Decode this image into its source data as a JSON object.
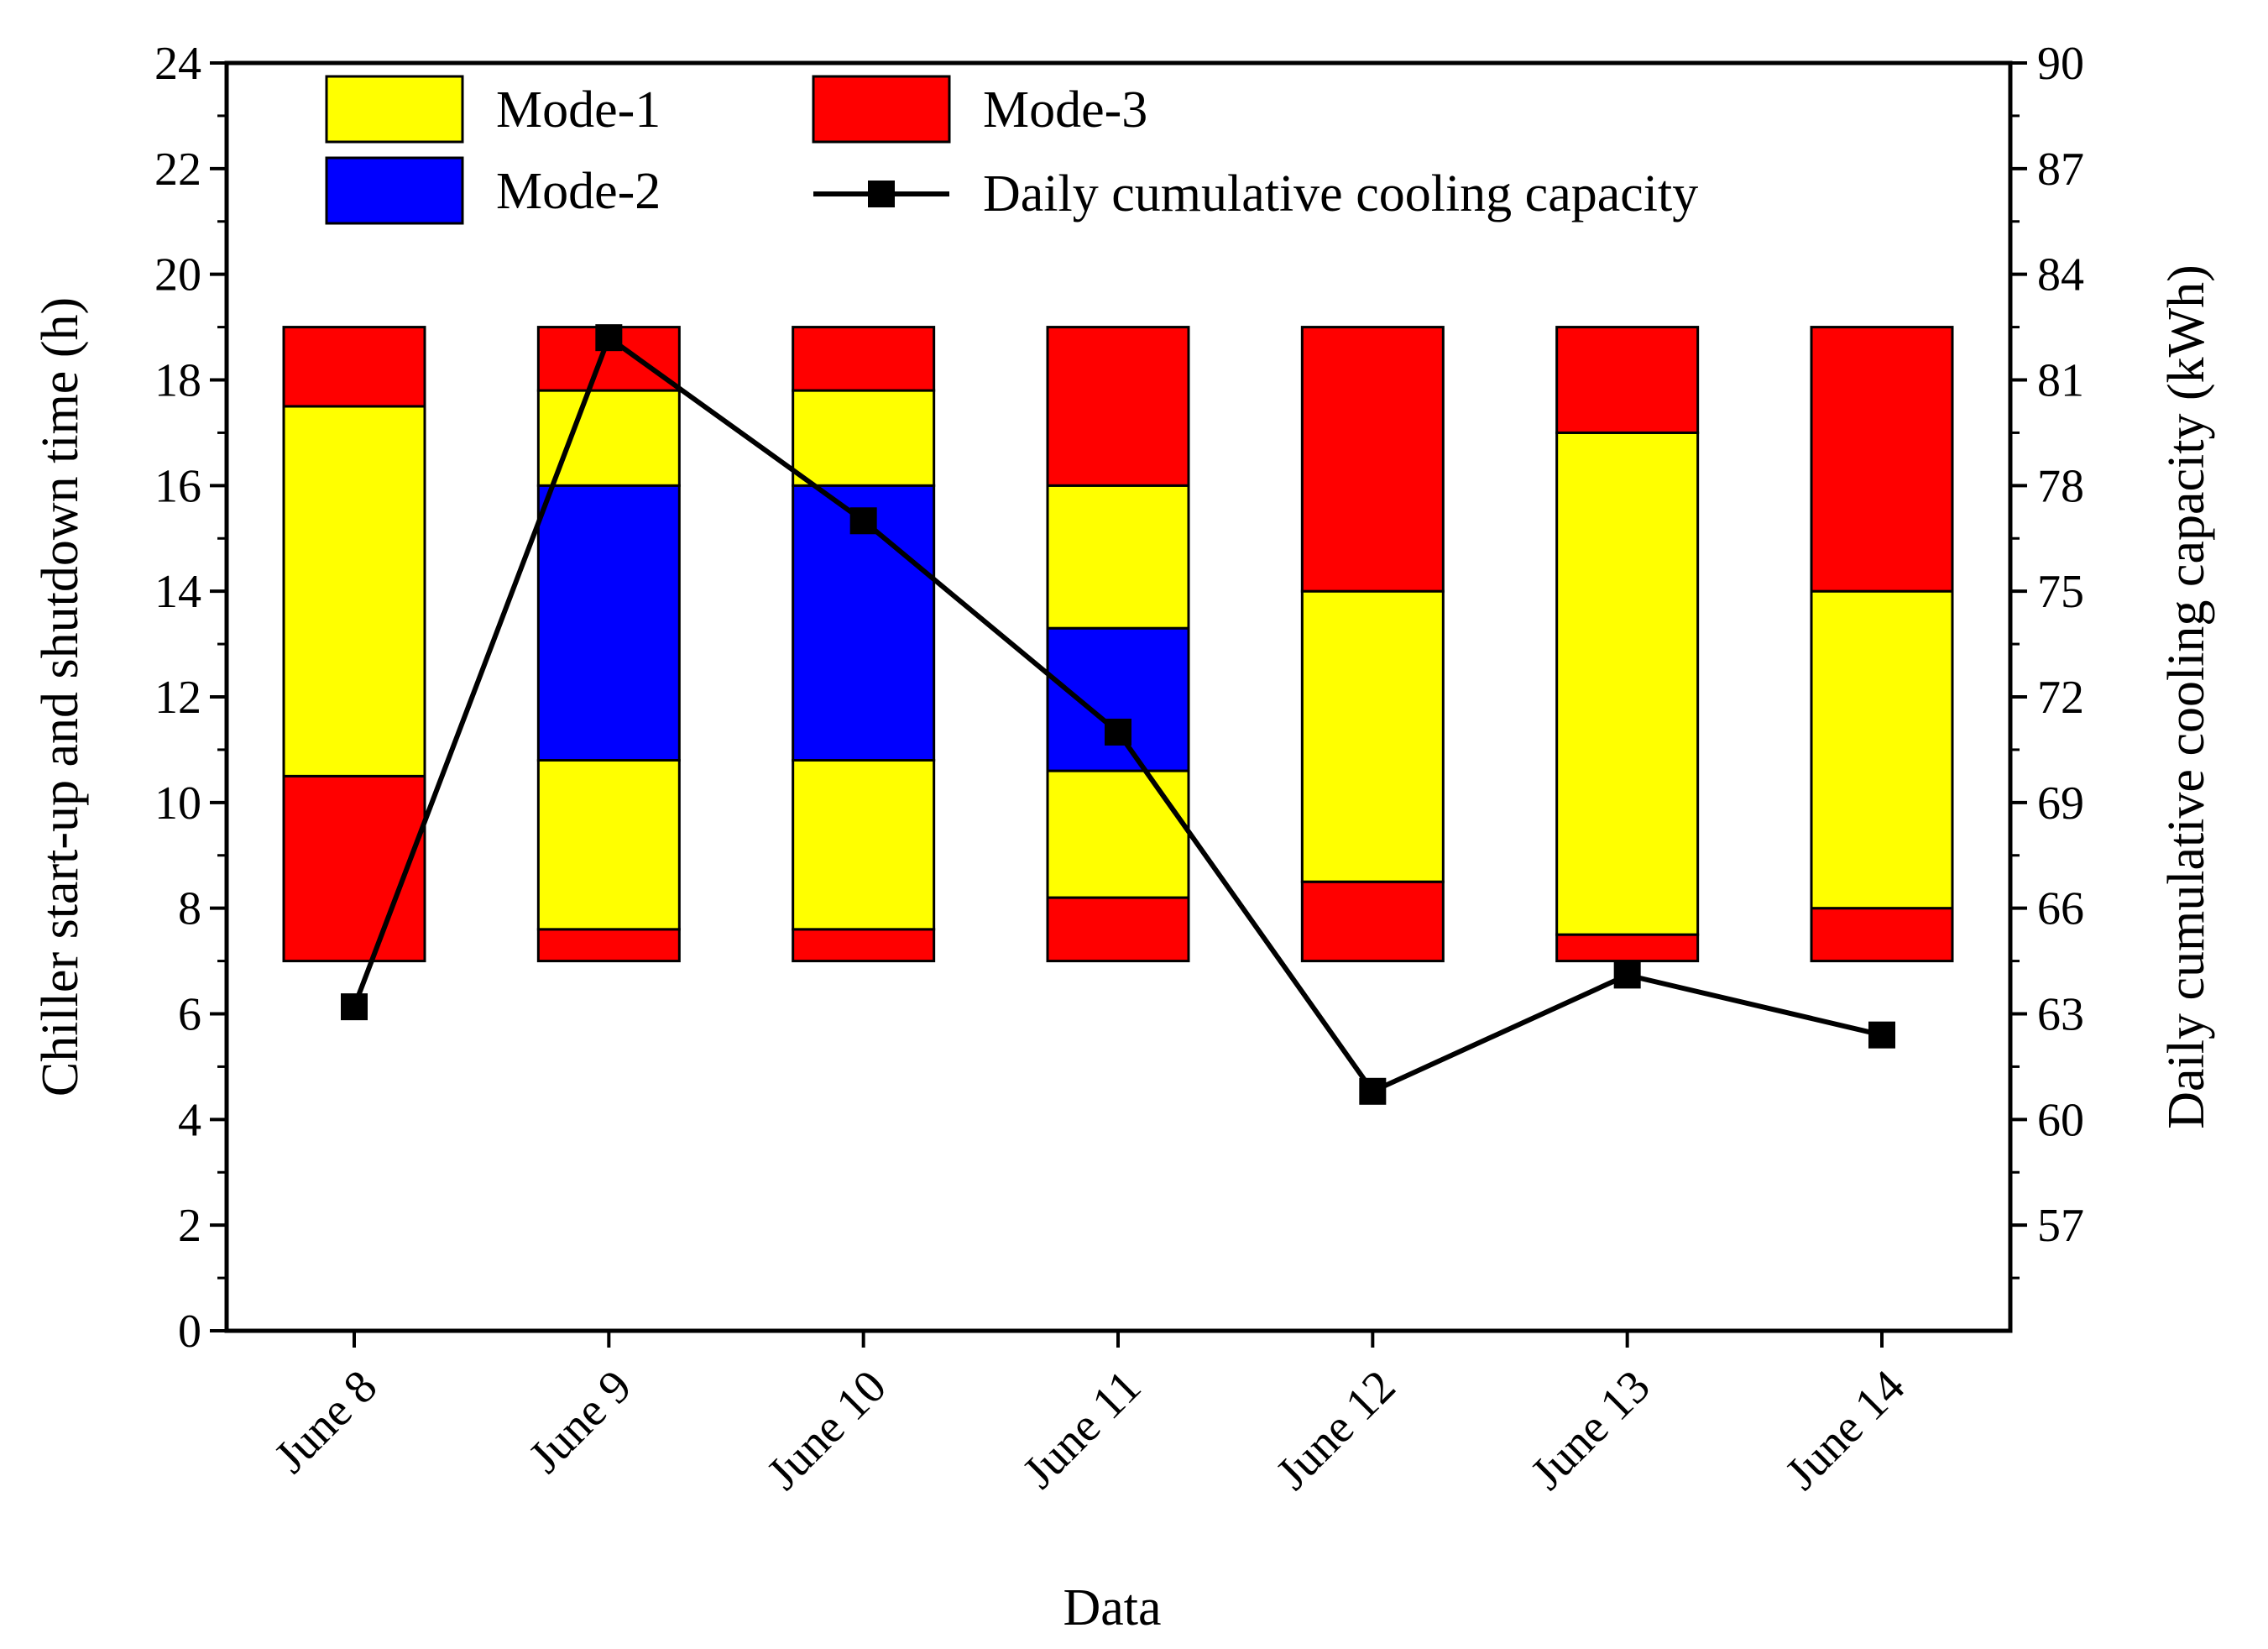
{
  "chart_data": {
    "type": "bar",
    "subtype": "stacked-floating-bar-with-line",
    "title": "",
    "xlabel": "Data",
    "ylabel_left": "Chiller start-up and shutdown time (h)",
    "ylabel_right": "Daily cumulative  cooling capacity (kWh)",
    "ylim_left": [
      0,
      24
    ],
    "yticks_left": [
      0,
      2,
      4,
      6,
      8,
      10,
      12,
      14,
      16,
      18,
      20,
      22,
      24
    ],
    "ylim_right": [
      54,
      90
    ],
    "yticks_right": [
      57,
      60,
      63,
      66,
      69,
      72,
      75,
      78,
      81,
      84,
      87,
      90
    ],
    "grid": false,
    "legend_position": "top",
    "categories": [
      "June 8",
      "June 9",
      "June 10",
      "June 11",
      "June 12",
      "June 13",
      "June 14"
    ],
    "bars": [
      [
        {
          "mode": "Mode-3",
          "from": 7,
          "to": 10.5
        },
        {
          "mode": "Mode-1",
          "from": 10.5,
          "to": 17.5
        },
        {
          "mode": "Mode-3",
          "from": 17.5,
          "to": 19
        }
      ],
      [
        {
          "mode": "Mode-3",
          "from": 7,
          "to": 7.6
        },
        {
          "mode": "Mode-1",
          "from": 7.6,
          "to": 10.8
        },
        {
          "mode": "Mode-2",
          "from": 10.8,
          "to": 16
        },
        {
          "mode": "Mode-1",
          "from": 16,
          "to": 17.8
        },
        {
          "mode": "Mode-3",
          "from": 17.8,
          "to": 19
        }
      ],
      [
        {
          "mode": "Mode-3",
          "from": 7,
          "to": 7.6
        },
        {
          "mode": "Mode-1",
          "from": 7.6,
          "to": 10.8
        },
        {
          "mode": "Mode-2",
          "from": 10.8,
          "to": 16
        },
        {
          "mode": "Mode-1",
          "from": 16,
          "to": 17.8
        },
        {
          "mode": "Mode-3",
          "from": 17.8,
          "to": 19
        }
      ],
      [
        {
          "mode": "Mode-3",
          "from": 7,
          "to": 8.2
        },
        {
          "mode": "Mode-1",
          "from": 8.2,
          "to": 10.6
        },
        {
          "mode": "Mode-2",
          "from": 10.6,
          "to": 13.3
        },
        {
          "mode": "Mode-1",
          "from": 13.3,
          "to": 16
        },
        {
          "mode": "Mode-3",
          "from": 16,
          "to": 19
        }
      ],
      [
        {
          "mode": "Mode-3",
          "from": 7,
          "to": 8.5
        },
        {
          "mode": "Mode-1",
          "from": 8.5,
          "to": 14
        },
        {
          "mode": "Mode-3",
          "from": 14,
          "to": 19
        }
      ],
      [
        {
          "mode": "Mode-3",
          "from": 7,
          "to": 7.5
        },
        {
          "mode": "Mode-1",
          "from": 7.5,
          "to": 17
        },
        {
          "mode": "Mode-3",
          "from": 17,
          "to": 19
        }
      ],
      [
        {
          "mode": "Mode-3",
          "from": 7,
          "to": 8
        },
        {
          "mode": "Mode-1",
          "from": 8,
          "to": 14
        },
        {
          "mode": "Mode-3",
          "from": 14,
          "to": 19
        }
      ]
    ],
    "line": {
      "name": "Daily cumulative cooling capacity",
      "axis": "right",
      "values": [
        63.2,
        82.2,
        77.0,
        71.0,
        60.8,
        64.1,
        62.4
      ],
      "color": "#000000",
      "marker": "square"
    },
    "modes": [
      {
        "name": "Mode-1",
        "color": "#ffff00"
      },
      {
        "name": "Mode-2",
        "color": "#0000ff"
      },
      {
        "name": "Mode-3",
        "color": "#ff0000"
      }
    ]
  }
}
